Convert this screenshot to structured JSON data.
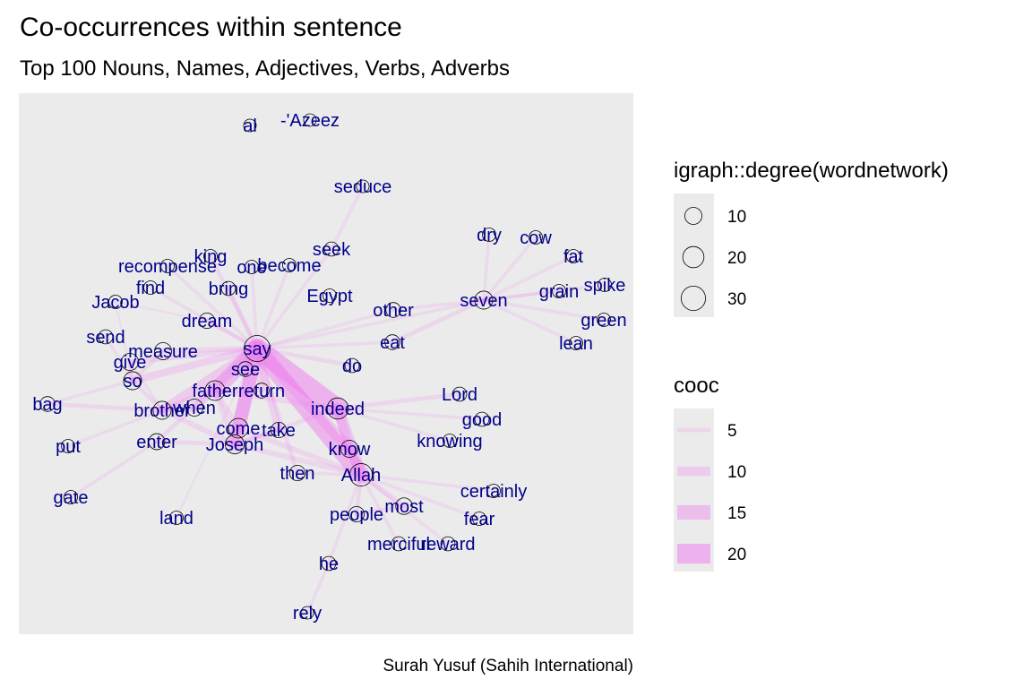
{
  "chart_data": {
    "type": "network",
    "title": "Co-occurrences within sentence",
    "subtitle": "Top 100 Nouns, Names, Adjectives, Verbs, Adverbs",
    "caption": "Surah Yusuf (Sahih International)",
    "legend_size": {
      "title": "igraph::degree(wordnetwork)",
      "entries": [
        {
          "label": "10",
          "value": 10
        },
        {
          "label": "20",
          "value": 20
        },
        {
          "label": "30",
          "value": 30
        }
      ]
    },
    "legend_cooc": {
      "title": "cooc",
      "entries": [
        {
          "label": "5",
          "value": 5
        },
        {
          "label": "10",
          "value": 10
        },
        {
          "label": "15",
          "value": 15
        },
        {
          "label": "20",
          "value": 20
        }
      ]
    },
    "colors": {
      "panel": "#ebebeb",
      "edge": "#ee82ee",
      "label": "#00008b",
      "node_stroke": "#000000"
    },
    "nodes": [
      {
        "label": "al",
        "degree": 3
      },
      {
        "label": "-'Azeez",
        "degree": 3
      },
      {
        "label": "seduce",
        "degree": 3
      },
      {
        "label": "seek",
        "degree": 5
      },
      {
        "label": "dry",
        "degree": 4
      },
      {
        "label": "cow",
        "degree": 4
      },
      {
        "label": "fat",
        "degree": 4
      },
      {
        "label": "grain",
        "degree": 4
      },
      {
        "label": "spike",
        "degree": 4
      },
      {
        "label": "green",
        "degree": 4
      },
      {
        "label": "lean",
        "degree": 4
      },
      {
        "label": "seven",
        "degree": 12
      },
      {
        "label": "other",
        "degree": 6
      },
      {
        "label": "eat",
        "degree": 6
      },
      {
        "label": "do",
        "degree": 5
      },
      {
        "label": "Egypt",
        "degree": 4
      },
      {
        "label": "king",
        "degree": 4
      },
      {
        "label": "recompense",
        "degree": 4
      },
      {
        "label": "one",
        "degree": 4
      },
      {
        "label": "become",
        "degree": 4
      },
      {
        "label": "find",
        "degree": 4
      },
      {
        "label": "bring",
        "degree": 5
      },
      {
        "label": "Jacob",
        "degree": 4
      },
      {
        "label": "dream",
        "degree": 7
      },
      {
        "label": "send",
        "degree": 5
      },
      {
        "label": "measure",
        "degree": 10
      },
      {
        "label": "give",
        "degree": 10
      },
      {
        "label": "so",
        "degree": 12
      },
      {
        "label": "say",
        "degree": 36
      },
      {
        "label": "see",
        "degree": 6
      },
      {
        "label": "father",
        "degree": 16
      },
      {
        "label": "return",
        "degree": 6
      },
      {
        "label": "when",
        "degree": 10
      },
      {
        "label": "brother",
        "degree": 12
      },
      {
        "label": "bag",
        "degree": 6
      },
      {
        "label": "indeed",
        "degree": 20
      },
      {
        "label": "Lord",
        "degree": 5
      },
      {
        "label": "good",
        "degree": 5
      },
      {
        "label": "knowing",
        "degree": 4
      },
      {
        "label": "come",
        "degree": 16
      },
      {
        "label": "take",
        "degree": 7
      },
      {
        "label": "Joseph",
        "degree": 14
      },
      {
        "label": "enter",
        "degree": 8
      },
      {
        "label": "put",
        "degree": 4
      },
      {
        "label": "know",
        "degree": 10
      },
      {
        "label": "then",
        "degree": 7
      },
      {
        "label": "Allah",
        "degree": 24
      },
      {
        "label": "gate",
        "degree": 4
      },
      {
        "label": "certainly",
        "degree": 4
      },
      {
        "label": "land",
        "degree": 4
      },
      {
        "label": "people",
        "degree": 7
      },
      {
        "label": "most",
        "degree": 9
      },
      {
        "label": "fear",
        "degree": 4
      },
      {
        "label": "merciful",
        "degree": 5
      },
      {
        "label": "reward",
        "degree": 5
      },
      {
        "label": "he",
        "degree": 5
      },
      {
        "label": "rely",
        "degree": 3
      }
    ],
    "edges": [
      {
        "source": "say",
        "target": "indeed",
        "cooc": 20
      },
      {
        "source": "say",
        "target": "Allah",
        "cooc": 18
      },
      {
        "source": "say",
        "target": "father",
        "cooc": 16
      },
      {
        "source": "say",
        "target": "come",
        "cooc": 14
      },
      {
        "source": "say",
        "target": "Joseph",
        "cooc": 14
      },
      {
        "source": "say",
        "target": "know",
        "cooc": 12
      },
      {
        "source": "say",
        "target": "brother",
        "cooc": 10
      },
      {
        "source": "say",
        "target": "when",
        "cooc": 9
      },
      {
        "source": "say",
        "target": "take",
        "cooc": 8
      },
      {
        "source": "say",
        "target": "return",
        "cooc": 7
      },
      {
        "source": "say",
        "target": "see",
        "cooc": 6
      },
      {
        "source": "say",
        "target": "so",
        "cooc": 8
      },
      {
        "source": "say",
        "target": "give",
        "cooc": 6
      },
      {
        "source": "say",
        "target": "measure",
        "cooc": 6
      },
      {
        "source": "say",
        "target": "dream",
        "cooc": 5
      },
      {
        "source": "say",
        "target": "do",
        "cooc": 5
      },
      {
        "source": "say",
        "target": "seven",
        "cooc": 4
      },
      {
        "source": "say",
        "target": "eat",
        "cooc": 4
      },
      {
        "source": "say",
        "target": "other",
        "cooc": 4
      },
      {
        "source": "say",
        "target": "seek",
        "cooc": 4
      },
      {
        "source": "say",
        "target": "bring",
        "cooc": 5
      },
      {
        "source": "say",
        "target": "king",
        "cooc": 5
      },
      {
        "source": "say",
        "target": "recompense",
        "cooc": 4
      },
      {
        "source": "say",
        "target": "find",
        "cooc": 4
      },
      {
        "source": "say",
        "target": "one",
        "cooc": 4
      },
      {
        "source": "say",
        "target": "become",
        "cooc": 4
      },
      {
        "source": "say",
        "target": "enter",
        "cooc": 5
      },
      {
        "source": "say",
        "target": "then",
        "cooc": 5
      },
      {
        "source": "say",
        "target": "land",
        "cooc": 3
      },
      {
        "source": "seek",
        "target": "seduce",
        "cooc": 4
      },
      {
        "source": "seven",
        "target": "dry",
        "cooc": 4
      },
      {
        "source": "seven",
        "target": "cow",
        "cooc": 4
      },
      {
        "source": "seven",
        "target": "fat",
        "cooc": 4
      },
      {
        "source": "seven",
        "target": "grain",
        "cooc": 4
      },
      {
        "source": "seven",
        "target": "spike",
        "cooc": 4
      },
      {
        "source": "seven",
        "target": "green",
        "cooc": 4
      },
      {
        "source": "seven",
        "target": "lean",
        "cooc": 4
      },
      {
        "source": "seven",
        "target": "other",
        "cooc": 4
      },
      {
        "source": "seven",
        "target": "eat",
        "cooc": 5
      },
      {
        "source": "indeed",
        "target": "Allah",
        "cooc": 12
      },
      {
        "source": "indeed",
        "target": "know",
        "cooc": 10
      },
      {
        "source": "indeed",
        "target": "Lord",
        "cooc": 5
      },
      {
        "source": "indeed",
        "target": "good",
        "cooc": 4
      },
      {
        "source": "indeed",
        "target": "knowing",
        "cooc": 4
      },
      {
        "source": "indeed",
        "target": "father",
        "cooc": 6
      },
      {
        "source": "indeed",
        "target": "Joseph",
        "cooc": 5
      },
      {
        "source": "Allah",
        "target": "know",
        "cooc": 10
      },
      {
        "source": "Allah",
        "target": "most",
        "cooc": 6
      },
      {
        "source": "Allah",
        "target": "people",
        "cooc": 5
      },
      {
        "source": "Allah",
        "target": "merciful",
        "cooc": 4
      },
      {
        "source": "Allah",
        "target": "reward",
        "cooc": 4
      },
      {
        "source": "Allah",
        "target": "fear",
        "cooc": 4
      },
      {
        "source": "Allah",
        "target": "certainly",
        "cooc": 4
      },
      {
        "source": "Allah",
        "target": "he",
        "cooc": 4
      },
      {
        "source": "Allah",
        "target": "come",
        "cooc": 6
      },
      {
        "source": "Allah",
        "target": "Joseph",
        "cooc": 6
      },
      {
        "source": "Allah",
        "target": "then",
        "cooc": 4
      },
      {
        "source": "most",
        "target": "people",
        "cooc": 5
      },
      {
        "source": "he",
        "target": "rely",
        "cooc": 4
      },
      {
        "source": "brother",
        "target": "bag",
        "cooc": 5
      },
      {
        "source": "brother",
        "target": "father",
        "cooc": 7
      },
      {
        "source": "brother",
        "target": "Joseph",
        "cooc": 6
      },
      {
        "source": "brother",
        "target": "so",
        "cooc": 5
      },
      {
        "source": "brother",
        "target": "give",
        "cooc": 4
      },
      {
        "source": "brother",
        "target": "put",
        "cooc": 4
      },
      {
        "source": "brother",
        "target": "when",
        "cooc": 5
      },
      {
        "source": "bag",
        "target": "so",
        "cooc": 4
      },
      {
        "source": "Joseph",
        "target": "come",
        "cooc": 8
      },
      {
        "source": "Joseph",
        "target": "father",
        "cooc": 6
      },
      {
        "source": "Joseph",
        "target": "enter",
        "cooc": 5
      },
      {
        "source": "Joseph",
        "target": "take",
        "cooc": 5
      },
      {
        "source": "enter",
        "target": "gate",
        "cooc": 4
      },
      {
        "source": "father",
        "target": "return",
        "cooc": 5
      },
      {
        "source": "father",
        "target": "come",
        "cooc": 6
      },
      {
        "source": "so",
        "target": "give",
        "cooc": 5
      },
      {
        "source": "so",
        "target": "measure",
        "cooc": 5
      },
      {
        "source": "so",
        "target": "send",
        "cooc": 4
      },
      {
        "source": "so",
        "target": "Jacob",
        "cooc": 3
      },
      {
        "source": "dream",
        "target": "Jacob",
        "cooc": 3
      }
    ]
  }
}
